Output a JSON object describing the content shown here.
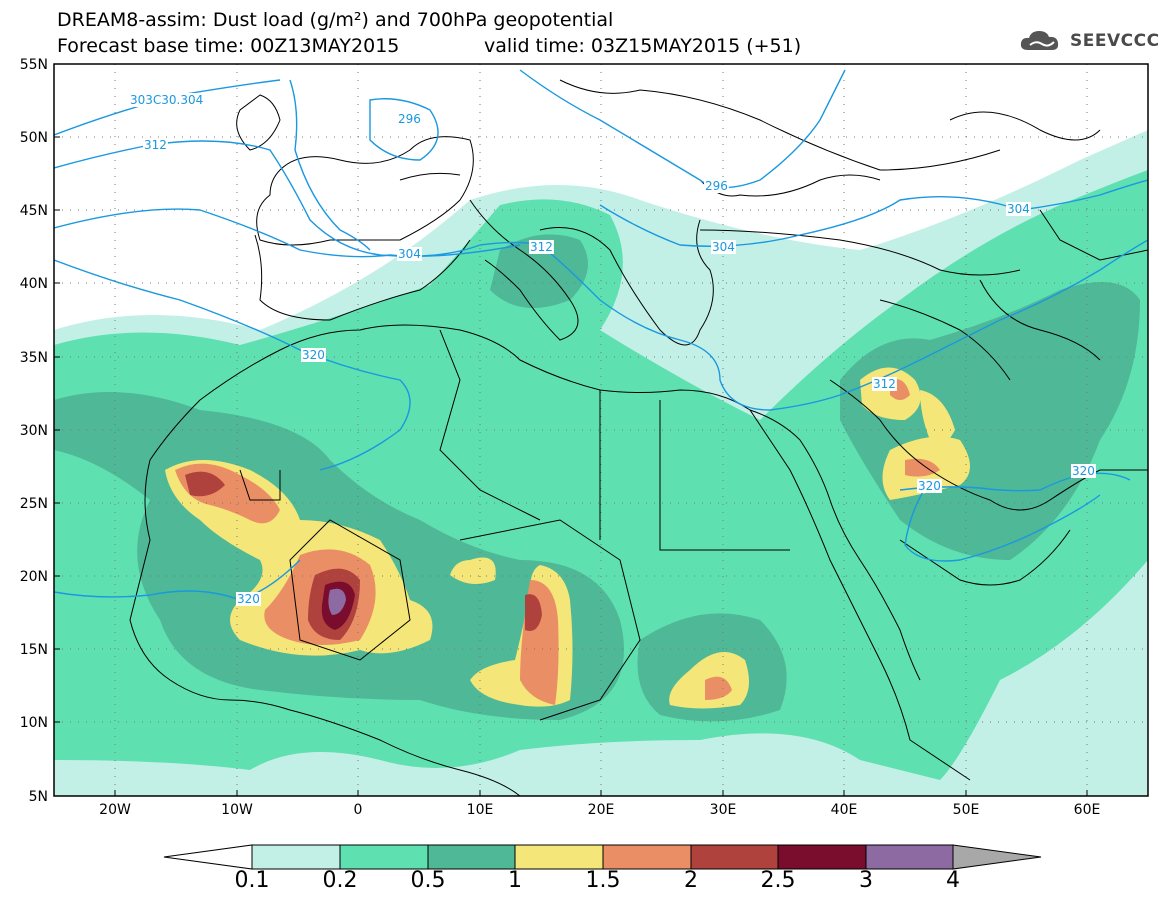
{
  "title": {
    "line1": "DREAM8-assim: Dust load (g/m²) and 700hPa geopotential",
    "line2_left": "Forecast base time: 00Z13MAY2015",
    "line2_right": "valid time: 03Z15MAY2015 (+51)"
  },
  "logo": {
    "text": "SEEVCCC",
    "icon": "cloud-icon"
  },
  "axes": {
    "lat_ticks": [
      "55N",
      "50N",
      "45N",
      "40N",
      "35N",
      "30N",
      "25N",
      "20N",
      "15N",
      "10N",
      "5N"
    ],
    "lon_ticks": [
      "20W",
      "10W",
      "0",
      "10E",
      "20E",
      "30E",
      "40E",
      "50E",
      "60E"
    ]
  },
  "contour_labels": [
    "303C30.304",
    "312",
    "296",
    "296",
    "304",
    "304",
    "312",
    "304",
    "320",
    "312",
    "320",
    "320",
    "320"
  ],
  "colorbar": {
    "labels": [
      "0.1",
      "0.2",
      "0.5",
      "1",
      "1.5",
      "2",
      "2.5",
      "3",
      "4"
    ],
    "colors": [
      "#ffffff",
      "#c3f0e6",
      "#5fe0b1",
      "#4fb896",
      "#f4e679",
      "#ea8f65",
      "#b0423d",
      "#7a0c2e",
      "#8d6aa2",
      "#a8a8a8"
    ]
  },
  "colors": {
    "contour": "#1a98e0",
    "border": "#000000",
    "graticule": "#777777"
  }
}
